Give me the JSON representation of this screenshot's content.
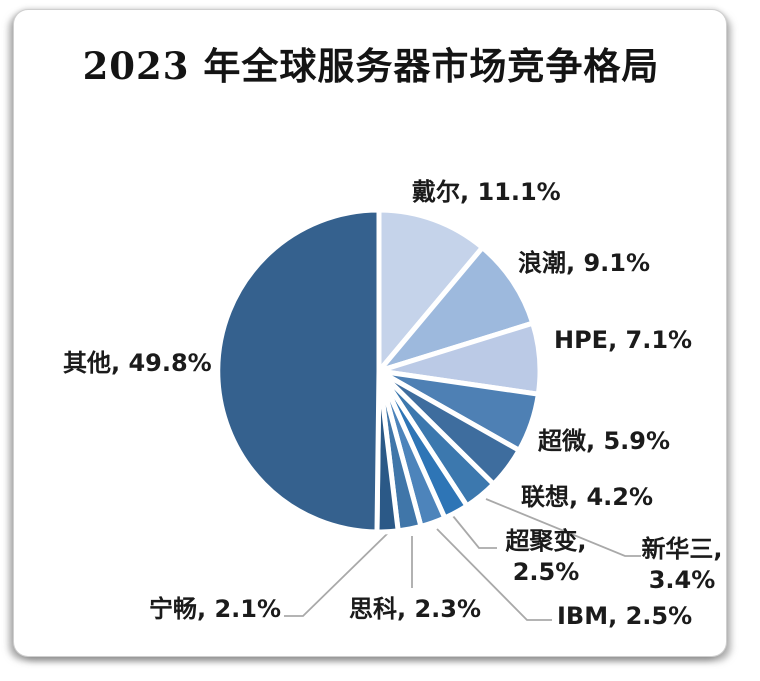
{
  "title": "2023 年全球服务器市场竞争格局",
  "labels": {
    "dell": "戴尔, 11.1%",
    "inspur": "浪潮, 9.1%",
    "hpe": "HPE, 7.1%",
    "supermicro": "超微, 5.9%",
    "lenovo": "联想, 4.2%",
    "h3c": {
      "line1": "新华三,",
      "line2": "3.4%"
    },
    "xfusion": {
      "line1": "超聚变,",
      "line2": "2.5%"
    },
    "ibm": "IBM, 2.5%",
    "cisco": "思科, 2.3%",
    "nettrix": "宁畅, 2.1%",
    "others": "其他, 49.8%"
  },
  "chart_data": {
    "type": "pie",
    "title": "2023 年全球服务器市场竞争格局",
    "categories": [
      "戴尔",
      "浪潮",
      "HPE",
      "超微",
      "联想",
      "新华三",
      "超聚变",
      "IBM",
      "思科",
      "宁畅",
      "其他"
    ],
    "values": [
      11.1,
      9.1,
      7.1,
      5.9,
      4.2,
      3.4,
      2.5,
      2.5,
      2.3,
      2.1,
      49.8
    ],
    "ids": [
      "dell",
      "inspur",
      "hpe",
      "supermicro",
      "lenovo",
      "h3c",
      "xfusion",
      "ibm",
      "cisco",
      "nettrix",
      "others"
    ],
    "colors": [
      "#C5D3EA",
      "#9DB9DD",
      "#BBCAE6",
      "#4E80B4",
      "#3E6D9E",
      "#3C78AE",
      "#2E75B6",
      "#4D84BB",
      "#4076A9",
      "#2B5987",
      "#35618E"
    ],
    "start_angle_deg": 0,
    "direction": "clockwise",
    "legend": "none",
    "labels_position": "outside",
    "slice_separator_color": "#ffffff",
    "leader_line_color": "#a9a9a9",
    "unit": "%"
  }
}
